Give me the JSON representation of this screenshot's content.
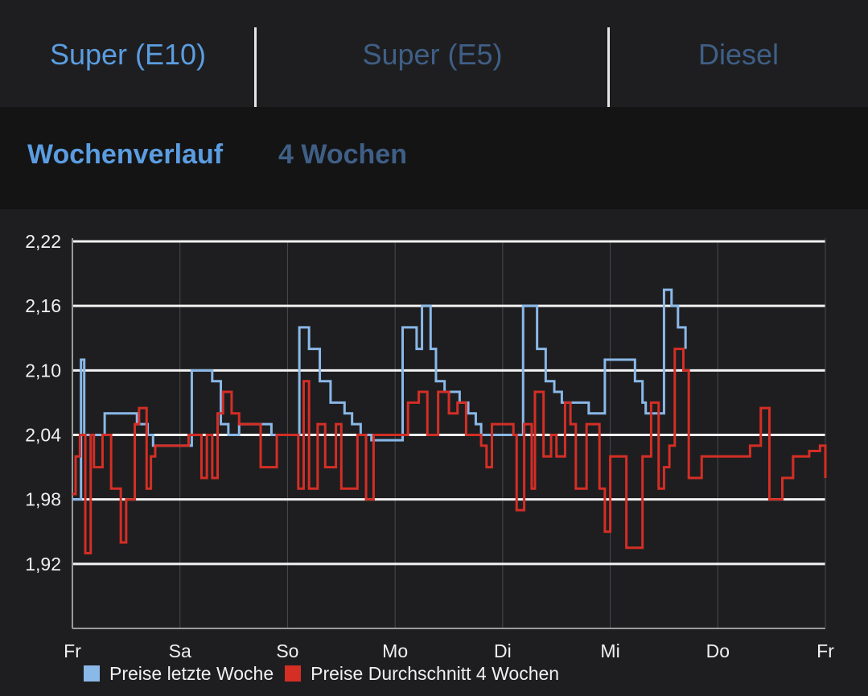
{
  "fuel_tabs": [
    {
      "label": "Super (E10)",
      "active": true
    },
    {
      "label": "Super (E5)",
      "active": false
    },
    {
      "label": "Diesel",
      "active": false
    }
  ],
  "period_tabs": [
    {
      "label": "Wochenverlauf",
      "active": true
    },
    {
      "label": "4 Wochen",
      "active": false
    }
  ],
  "colors": {
    "active_tab": "#5b9de0",
    "inactive_tab": "#3f5f86",
    "last_week": "#8ab8e8",
    "avg_4_weeks": "#d42e25"
  },
  "chart_data": {
    "type": "line",
    "title": "",
    "xlabel": "",
    "ylabel": "",
    "ylim": [
      1.86,
      2.22
    ],
    "y_ticks": [
      "2,22",
      "2,16",
      "2,10",
      "2,04",
      "1,98",
      "1,92"
    ],
    "y_tick_values": [
      2.22,
      2.16,
      2.1,
      2.04,
      1.98,
      1.92
    ],
    "xlim": [
      0,
      7
    ],
    "x_ticks": [
      "Fr",
      "Sa",
      "So",
      "Mo",
      "Di",
      "Mi",
      "Do",
      "Fr"
    ],
    "x_tick_values": [
      0,
      1,
      2,
      3,
      4,
      5,
      6,
      7
    ],
    "grid": true,
    "legend_position": "bottom",
    "step": true,
    "series": [
      {
        "name": "Preise letzte Woche",
        "color": "#8ab8e8",
        "points": [
          [
            0,
            1.98
          ],
          [
            0.08,
            2.11
          ],
          [
            0.11,
            2.04
          ],
          [
            0.3,
            2.06
          ],
          [
            0.6,
            2.05
          ],
          [
            0.7,
            2.04
          ],
          [
            0.75,
            2.03
          ],
          [
            1.11,
            2.1
          ],
          [
            1.3,
            2.09
          ],
          [
            1.38,
            2.05
          ],
          [
            1.45,
            2.04
          ],
          [
            1.55,
            2.05
          ],
          [
            1.85,
            2.04
          ],
          [
            2.11,
            2.14
          ],
          [
            2.2,
            2.12
          ],
          [
            2.3,
            2.09
          ],
          [
            2.4,
            2.07
          ],
          [
            2.53,
            2.06
          ],
          [
            2.6,
            2.05
          ],
          [
            2.68,
            2.04
          ],
          [
            2.78,
            2.035
          ],
          [
            3.07,
            2.14
          ],
          [
            3.2,
            2.12
          ],
          [
            3.25,
            2.16
          ],
          [
            3.33,
            2.12
          ],
          [
            3.38,
            2.09
          ],
          [
            3.46,
            2.08
          ],
          [
            3.6,
            2.07
          ],
          [
            3.68,
            2.06
          ],
          [
            3.75,
            2.05
          ],
          [
            3.8,
            2.04
          ],
          [
            4.19,
            2.16
          ],
          [
            4.32,
            2.12
          ],
          [
            4.4,
            2.09
          ],
          [
            4.48,
            2.08
          ],
          [
            4.55,
            2.07
          ],
          [
            4.8,
            2.06
          ],
          [
            4.95,
            2.11
          ],
          [
            5.23,
            2.09
          ],
          [
            5.3,
            2.07
          ],
          [
            5.33,
            2.06
          ],
          [
            5.5,
            2.175
          ],
          [
            5.57,
            2.16
          ],
          [
            5.63,
            2.14
          ],
          [
            5.7,
            2.12
          ]
        ]
      },
      {
        "name": "Preise Durchschnitt 4 Wochen",
        "color": "#d42e25",
        "points": [
          [
            0,
            1.985
          ],
          [
            0.03,
            2.02
          ],
          [
            0.07,
            2.04
          ],
          [
            0.12,
            1.93
          ],
          [
            0.17,
            2.04
          ],
          [
            0.2,
            2.01
          ],
          [
            0.28,
            2.04
          ],
          [
            0.36,
            1.99
          ],
          [
            0.45,
            1.94
          ],
          [
            0.5,
            1.98
          ],
          [
            0.58,
            2.05
          ],
          [
            0.62,
            2.065
          ],
          [
            0.69,
            1.99
          ],
          [
            0.73,
            2.02
          ],
          [
            0.77,
            2.03
          ],
          [
            1.08,
            2.04
          ],
          [
            1.2,
            2.0
          ],
          [
            1.25,
            2.04
          ],
          [
            1.3,
            2.0
          ],
          [
            1.35,
            2.06
          ],
          [
            1.4,
            2.08
          ],
          [
            1.48,
            2.06
          ],
          [
            1.55,
            2.05
          ],
          [
            1.75,
            2.01
          ],
          [
            1.9,
            2.04
          ],
          [
            2.0,
            2.04
          ],
          [
            2.1,
            1.99
          ],
          [
            2.15,
            2.09
          ],
          [
            2.2,
            1.99
          ],
          [
            2.28,
            2.05
          ],
          [
            2.35,
            2.01
          ],
          [
            2.45,
            2.05
          ],
          [
            2.5,
            1.99
          ],
          [
            2.65,
            2.04
          ],
          [
            2.73,
            1.98
          ],
          [
            2.8,
            2.04
          ],
          [
            3.0,
            2.04
          ],
          [
            3.12,
            2.07
          ],
          [
            3.22,
            2.08
          ],
          [
            3.3,
            2.04
          ],
          [
            3.4,
            2.08
          ],
          [
            3.5,
            2.06
          ],
          [
            3.58,
            2.07
          ],
          [
            3.66,
            2.04
          ],
          [
            3.8,
            2.03
          ],
          [
            3.85,
            2.01
          ],
          [
            3.9,
            2.05
          ],
          [
            4.1,
            2.04
          ],
          [
            4.13,
            1.97
          ],
          [
            4.2,
            2.05
          ],
          [
            4.27,
            1.99
          ],
          [
            4.3,
            2.08
          ],
          [
            4.38,
            2.02
          ],
          [
            4.45,
            2.04
          ],
          [
            4.5,
            2.02
          ],
          [
            4.58,
            2.07
          ],
          [
            4.63,
            2.05
          ],
          [
            4.68,
            1.99
          ],
          [
            4.78,
            2.05
          ],
          [
            4.85,
            2.05
          ],
          [
            4.9,
            1.99
          ],
          [
            4.95,
            1.95
          ],
          [
            5.0,
            2.02
          ],
          [
            5.1,
            2.02
          ],
          [
            5.15,
            1.935
          ],
          [
            5.3,
            2.02
          ],
          [
            5.38,
            2.07
          ],
          [
            5.45,
            1.99
          ],
          [
            5.5,
            2.01
          ],
          [
            5.55,
            2.03
          ],
          [
            5.6,
            2.12
          ],
          [
            5.68,
            2.1
          ],
          [
            5.73,
            2.0
          ],
          [
            5.85,
            2.02
          ],
          [
            6.1,
            2.02
          ],
          [
            6.3,
            2.03
          ],
          [
            6.4,
            2.065
          ],
          [
            6.48,
            1.98
          ],
          [
            6.6,
            2.0
          ],
          [
            6.7,
            2.02
          ],
          [
            6.85,
            2.025
          ],
          [
            6.95,
            2.03
          ],
          [
            7.0,
            2.0
          ]
        ]
      }
    ]
  }
}
